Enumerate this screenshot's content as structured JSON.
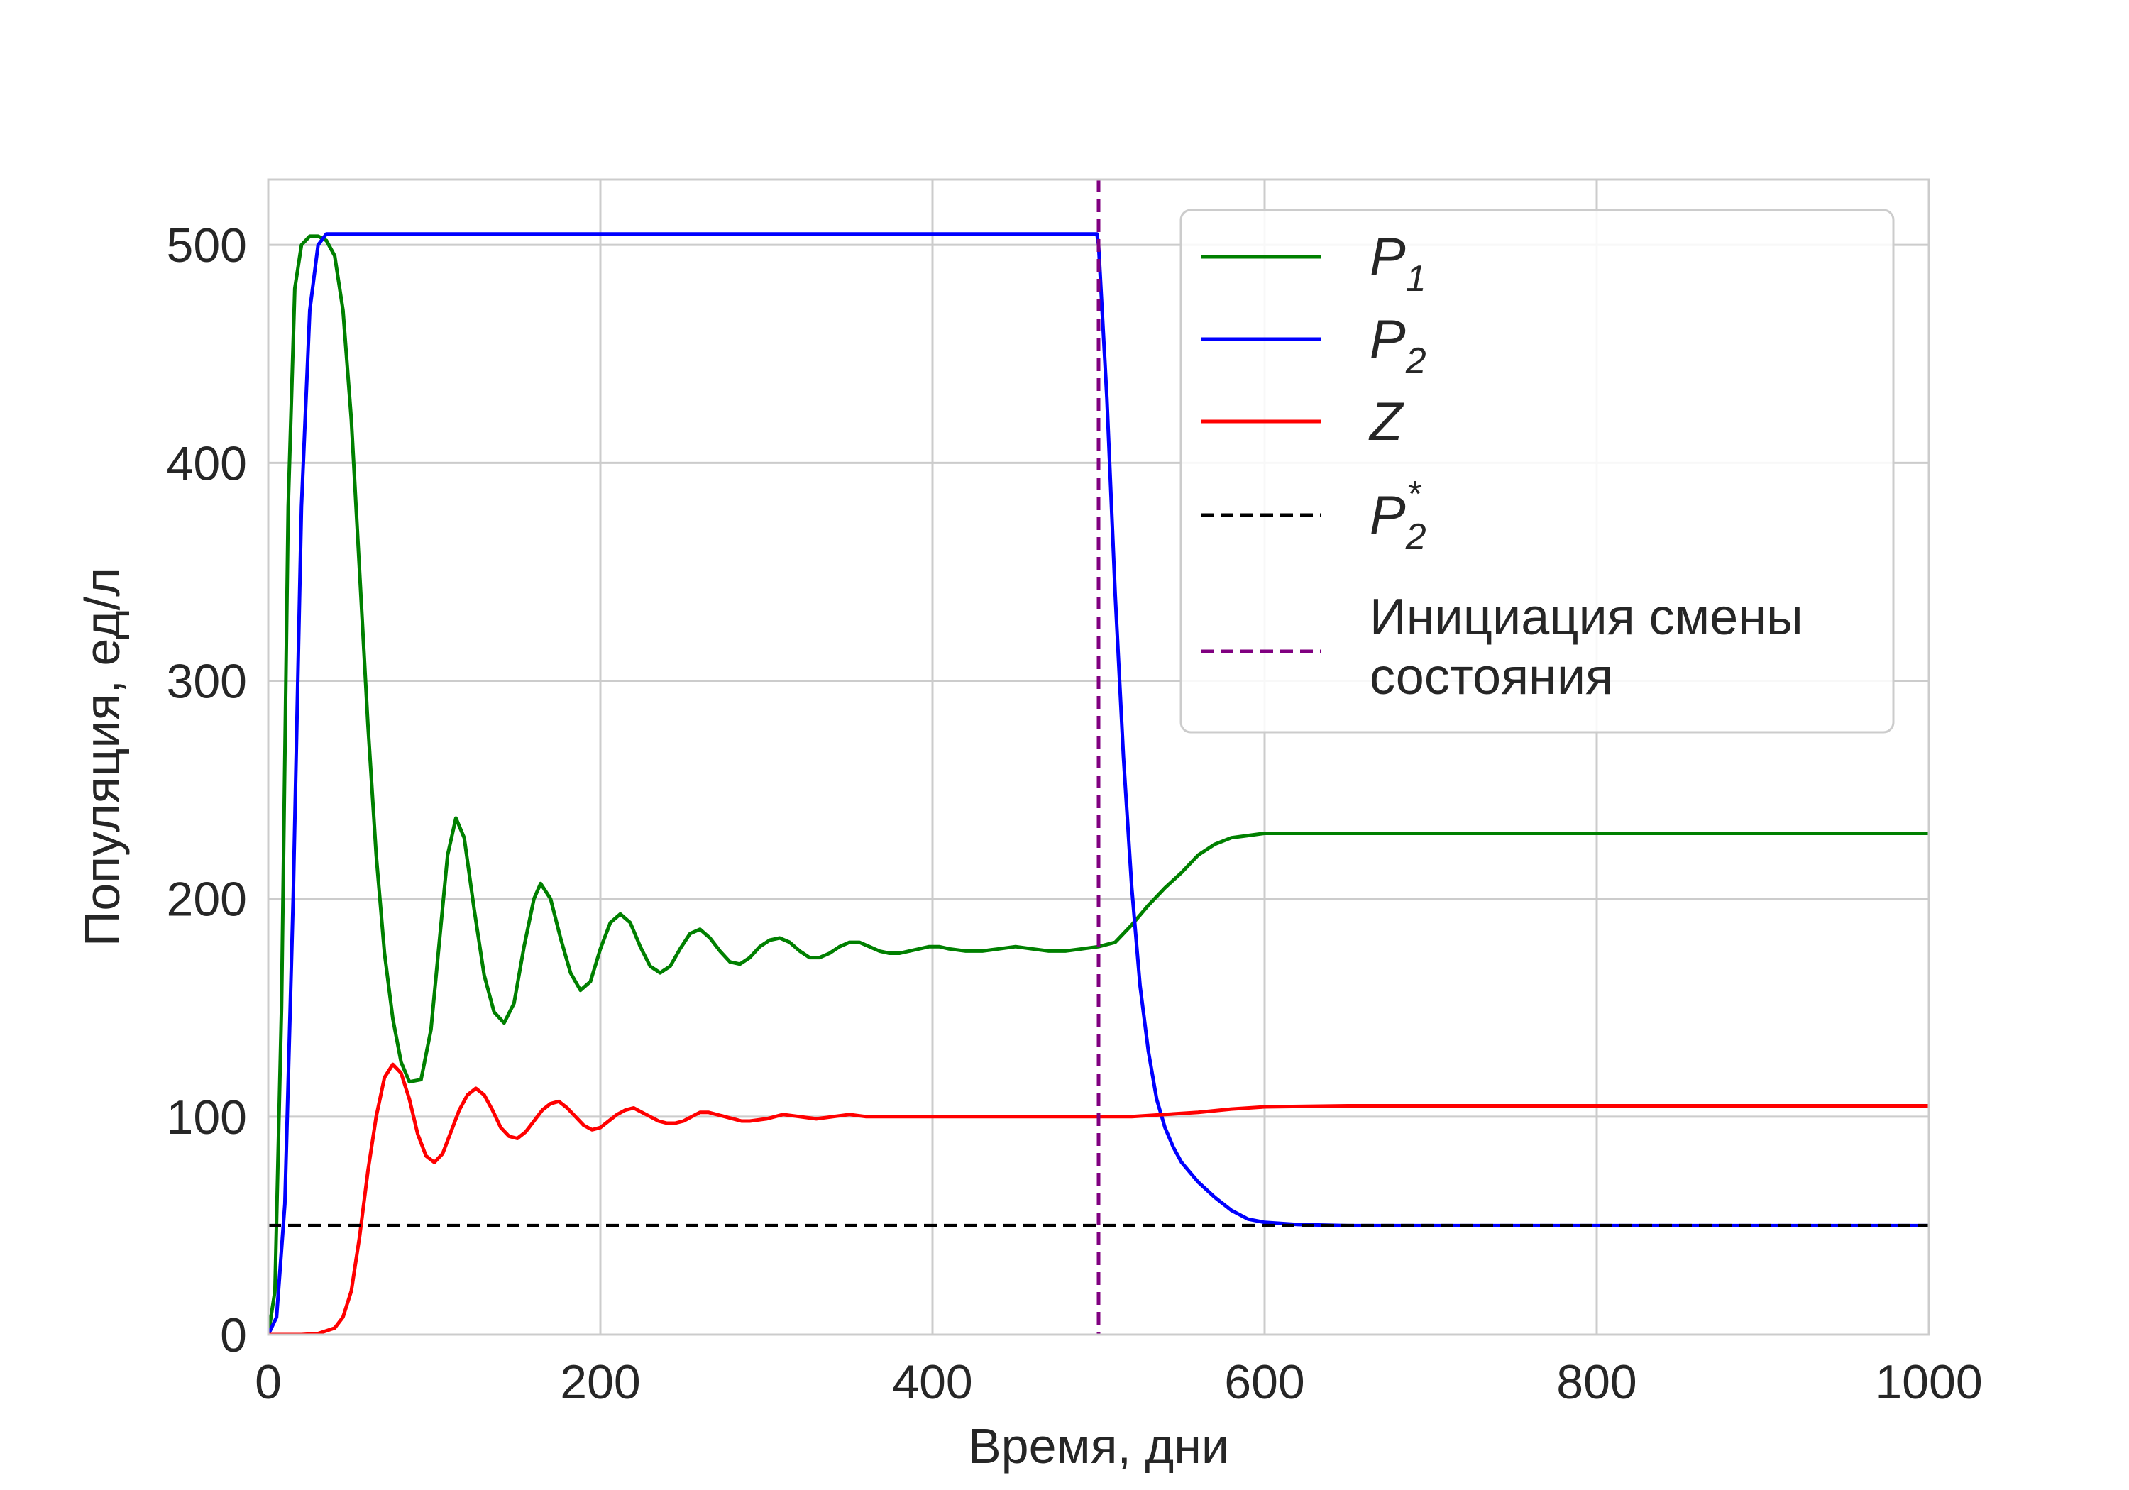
{
  "chart_data": {
    "type": "line",
    "title": "",
    "xlabel": "Время, дни",
    "ylabel": "Популяция, ед/л",
    "xlim": [
      0,
      1000
    ],
    "ylim": [
      0,
      530
    ],
    "x_ticks": [
      0,
      200,
      400,
      600,
      800,
      1000
    ],
    "y_ticks": [
      0,
      100,
      200,
      300,
      400,
      500
    ],
    "x_tick_labels": [
      "0",
      "200",
      "400",
      "600",
      "800",
      "1000"
    ],
    "y_tick_labels": [
      "0",
      "100",
      "200",
      "300",
      "400",
      "500"
    ],
    "grid": true,
    "legend_position": "top-right",
    "series": [
      {
        "name": "P₁",
        "legend": {
          "base": "P",
          "sub": "1",
          "sup": ""
        },
        "color": "#008000",
        "style": "solid",
        "points": [
          [
            0,
            0
          ],
          [
            4,
            20
          ],
          [
            8,
            150
          ],
          [
            12,
            380
          ],
          [
            16,
            480
          ],
          [
            20,
            500
          ],
          [
            25,
            504
          ],
          [
            30,
            504
          ],
          [
            35,
            502
          ],
          [
            40,
            495
          ],
          [
            45,
            470
          ],
          [
            50,
            420
          ],
          [
            55,
            350
          ],
          [
            60,
            280
          ],
          [
            65,
            220
          ],
          [
            70,
            175
          ],
          [
            75,
            145
          ],
          [
            80,
            125
          ],
          [
            85,
            116
          ],
          [
            92,
            117
          ],
          [
            98,
            140
          ],
          [
            103,
            180
          ],
          [
            108,
            220
          ],
          [
            113,
            237
          ],
          [
            118,
            228
          ],
          [
            124,
            195
          ],
          [
            130,
            165
          ],
          [
            136,
            148
          ],
          [
            142,
            143
          ],
          [
            148,
            152
          ],
          [
            154,
            178
          ],
          [
            160,
            200
          ],
          [
            164,
            207
          ],
          [
            170,
            200
          ],
          [
            176,
            182
          ],
          [
            182,
            166
          ],
          [
            188,
            158
          ],
          [
            194,
            162
          ],
          [
            200,
            177
          ],
          [
            206,
            189
          ],
          [
            212,
            193
          ],
          [
            218,
            189
          ],
          [
            224,
            178
          ],
          [
            230,
            169
          ],
          [
            236,
            166
          ],
          [
            242,
            169
          ],
          [
            248,
            177
          ],
          [
            254,
            184
          ],
          [
            260,
            186
          ],
          [
            266,
            182
          ],
          [
            272,
            176
          ],
          [
            278,
            171
          ],
          [
            284,
            170
          ],
          [
            290,
            173
          ],
          [
            296,
            178
          ],
          [
            302,
            181
          ],
          [
            308,
            182
          ],
          [
            314,
            180
          ],
          [
            320,
            176
          ],
          [
            326,
            173
          ],
          [
            332,
            173
          ],
          [
            338,
            175
          ],
          [
            344,
            178
          ],
          [
            350,
            180
          ],
          [
            356,
            180
          ],
          [
            362,
            178
          ],
          [
            368,
            176
          ],
          [
            374,
            175
          ],
          [
            380,
            175
          ],
          [
            386,
            176
          ],
          [
            392,
            177
          ],
          [
            398,
            178
          ],
          [
            404,
            178
          ],
          [
            410,
            177
          ],
          [
            420,
            176
          ],
          [
            430,
            176
          ],
          [
            440,
            177
          ],
          [
            450,
            178
          ],
          [
            460,
            177
          ],
          [
            470,
            176
          ],
          [
            480,
            176
          ],
          [
            490,
            177
          ],
          [
            500,
            178
          ],
          [
            510,
            180
          ],
          [
            520,
            188
          ],
          [
            530,
            197
          ],
          [
            540,
            205
          ],
          [
            550,
            212
          ],
          [
            560,
            220
          ],
          [
            570,
            225
          ],
          [
            580,
            228
          ],
          [
            590,
            229
          ],
          [
            600,
            230
          ],
          [
            650,
            230
          ],
          [
            700,
            230
          ],
          [
            800,
            230
          ],
          [
            900,
            230
          ],
          [
            1000,
            230
          ]
        ]
      },
      {
        "name": "P₂",
        "legend": {
          "base": "P",
          "sub": "2",
          "sup": ""
        },
        "color": "#0000ff",
        "style": "solid",
        "points": [
          [
            0,
            0
          ],
          [
            5,
            8
          ],
          [
            10,
            60
          ],
          [
            15,
            200
          ],
          [
            20,
            380
          ],
          [
            25,
            470
          ],
          [
            30,
            500
          ],
          [
            35,
            505
          ],
          [
            40,
            505
          ],
          [
            100,
            505
          ],
          [
            200,
            505
          ],
          [
            300,
            505
          ],
          [
            400,
            505
          ],
          [
            499,
            505
          ],
          [
            500,
            500
          ],
          [
            505,
            430
          ],
          [
            510,
            340
          ],
          [
            515,
            265
          ],
          [
            520,
            205
          ],
          [
            525,
            160
          ],
          [
            530,
            130
          ],
          [
            535,
            108
          ],
          [
            540,
            95
          ],
          [
            545,
            86
          ],
          [
            550,
            79
          ],
          [
            560,
            70
          ],
          [
            570,
            63
          ],
          [
            580,
            57
          ],
          [
            590,
            53
          ],
          [
            600,
            51.5
          ],
          [
            620,
            50.5
          ],
          [
            650,
            50
          ],
          [
            700,
            50
          ],
          [
            800,
            50
          ],
          [
            900,
            50
          ],
          [
            1000,
            50
          ]
        ]
      },
      {
        "name": "Z",
        "legend": {
          "base": "Z",
          "sub": "",
          "sup": ""
        },
        "color": "#ff0000",
        "style": "solid",
        "points": [
          [
            0,
            0
          ],
          [
            20,
            0
          ],
          [
            30,
            0.5
          ],
          [
            40,
            3
          ],
          [
            45,
            8
          ],
          [
            50,
            20
          ],
          [
            55,
            45
          ],
          [
            60,
            75
          ],
          [
            65,
            100
          ],
          [
            70,
            118
          ],
          [
            75,
            124
          ],
          [
            80,
            120
          ],
          [
            85,
            108
          ],
          [
            90,
            92
          ],
          [
            95,
            82
          ],
          [
            100,
            79
          ],
          [
            105,
            83
          ],
          [
            110,
            93
          ],
          [
            115,
            103
          ],
          [
            120,
            110
          ],
          [
            125,
            113
          ],
          [
            130,
            110
          ],
          [
            135,
            103
          ],
          [
            140,
            95
          ],
          [
            145,
            91
          ],
          [
            150,
            90
          ],
          [
            155,
            93
          ],
          [
            160,
            98
          ],
          [
            165,
            103
          ],
          [
            170,
            106
          ],
          [
            175,
            107
          ],
          [
            180,
            104
          ],
          [
            185,
            100
          ],
          [
            190,
            96
          ],
          [
            195,
            94
          ],
          [
            200,
            95
          ],
          [
            205,
            98
          ],
          [
            210,
            101
          ],
          [
            215,
            103
          ],
          [
            220,
            104
          ],
          [
            225,
            102
          ],
          [
            230,
            100
          ],
          [
            235,
            98
          ],
          [
            240,
            97
          ],
          [
            245,
            97
          ],
          [
            250,
            98
          ],
          [
            255,
            100
          ],
          [
            260,
            102
          ],
          [
            265,
            102
          ],
          [
            270,
            101
          ],
          [
            275,
            100
          ],
          [
            280,
            99
          ],
          [
            285,
            98
          ],
          [
            290,
            98
          ],
          [
            300,
            99
          ],
          [
            310,
            101
          ],
          [
            320,
            100
          ],
          [
            330,
            99
          ],
          [
            340,
            100
          ],
          [
            350,
            101
          ],
          [
            360,
            100
          ],
          [
            380,
            100
          ],
          [
            400,
            100
          ],
          [
            450,
            100
          ],
          [
            500,
            100
          ],
          [
            520,
            100
          ],
          [
            540,
            101
          ],
          [
            560,
            102
          ],
          [
            580,
            103.5
          ],
          [
            600,
            104.5
          ],
          [
            650,
            105
          ],
          [
            700,
            105
          ],
          [
            800,
            105
          ],
          [
            900,
            105
          ],
          [
            1000,
            105
          ]
        ]
      },
      {
        "name": "P₂*",
        "legend": {
          "base": "P",
          "sub": "2",
          "sup": "*"
        },
        "color": "#000000",
        "style": "dashed",
        "points": [
          [
            0,
            50
          ],
          [
            1000,
            50
          ]
        ]
      }
    ],
    "vlines": [
      {
        "name": "Инициация смены состояния",
        "legend_lines": [
          "Инициация смены",
          "состояния"
        ],
        "color": "#800080",
        "style": "dashed",
        "x": 500
      }
    ]
  }
}
